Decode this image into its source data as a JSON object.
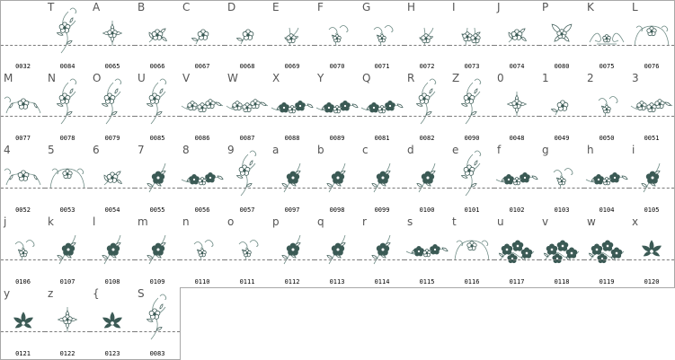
{
  "palette": {
    "ink": "#3b5a55",
    "line": "#6f8c86",
    "border": "#a8a8a8",
    "baseline": "#7a7a7a"
  },
  "rows": [
    [
      {
        "char": "",
        "code": "0032",
        "glyph": "none"
      },
      {
        "char": "T",
        "code": "0084",
        "glyph": "vine-tall-flower"
      },
      {
        "char": "A",
        "code": "0065",
        "glyph": "cross-flower"
      },
      {
        "char": "B",
        "code": "0066",
        "glyph": "leaf-flower-sprig"
      },
      {
        "char": "C",
        "code": "0067",
        "glyph": "small-flower-sprig"
      },
      {
        "char": "D",
        "code": "0068",
        "glyph": "small-flower-sprig"
      },
      {
        "char": "E",
        "code": "0069",
        "glyph": "bud-sprig"
      },
      {
        "char": "F",
        "code": "0070",
        "glyph": "curl-sprig"
      },
      {
        "char": "G",
        "code": "0071",
        "glyph": "curl-sprig"
      },
      {
        "char": "H",
        "code": "0072",
        "glyph": "bud-sprig"
      },
      {
        "char": "I",
        "code": "0073",
        "glyph": "double-flower"
      },
      {
        "char": "J",
        "code": "0074",
        "glyph": "leaf-flower-sprig"
      },
      {
        "char": "P",
        "code": "0080",
        "glyph": "butterfly-flower"
      },
      {
        "char": "K",
        "code": "0075",
        "glyph": "swirl-border"
      },
      {
        "char": "L",
        "code": "0076",
        "glyph": "arch-border"
      }
    ],
    [
      {
        "char": "M",
        "code": "0077",
        "glyph": "wreath"
      },
      {
        "char": "N",
        "code": "0078",
        "glyph": "vine-tall-flower"
      },
      {
        "char": "O",
        "code": "0079",
        "glyph": "vine-tall-flower"
      },
      {
        "char": "U",
        "code": "0085",
        "glyph": "vine-tall-flower"
      },
      {
        "char": "V",
        "code": "0086",
        "glyph": "garland"
      },
      {
        "char": "W",
        "code": "0087",
        "glyph": "garland"
      },
      {
        "char": "X",
        "code": "0088",
        "glyph": "garland-dark"
      },
      {
        "char": "Y",
        "code": "0089",
        "glyph": "garland-dark"
      },
      {
        "char": "Q",
        "code": "0081",
        "glyph": "garland-dark"
      },
      {
        "char": "R",
        "code": "0082",
        "glyph": "vine-tall-flower"
      },
      {
        "char": "Z",
        "code": "0090",
        "glyph": "vine-tall-flower"
      },
      {
        "char": "0",
        "code": "0048",
        "glyph": "cross-flower"
      },
      {
        "char": "1",
        "code": "0049",
        "glyph": "small-flower-sprig"
      },
      {
        "char": "2",
        "code": "0050",
        "glyph": "curl-sprig"
      },
      {
        "char": "3",
        "code": "0051",
        "glyph": "garland"
      }
    ],
    [
      {
        "char": "4",
        "code": "0052",
        "glyph": "wreath"
      },
      {
        "char": "5",
        "code": "0053",
        "glyph": "arch-border"
      },
      {
        "char": "6",
        "code": "0054",
        "glyph": "leaf-flower-sprig"
      },
      {
        "char": "7",
        "code": "0055",
        "glyph": "dark-flower-sprig"
      },
      {
        "char": "8",
        "code": "0056",
        "glyph": "garland-dark"
      },
      {
        "char": "9",
        "code": "0057",
        "glyph": "vine-tall-flower"
      },
      {
        "char": "a",
        "code": "0097",
        "glyph": "dark-flower-sprig"
      },
      {
        "char": "b",
        "code": "0098",
        "glyph": "dark-flower-sprig"
      },
      {
        "char": "c",
        "code": "0099",
        "glyph": "dark-flower-sprig"
      },
      {
        "char": "d",
        "code": "0100",
        "glyph": "dark-flower-sprig"
      },
      {
        "char": "e",
        "code": "0101",
        "glyph": "vine-tall-flower"
      },
      {
        "char": "f",
        "code": "0102",
        "glyph": "garland-dark"
      },
      {
        "char": "g",
        "code": "0103",
        "glyph": "curl-sprig"
      },
      {
        "char": "h",
        "code": "0104",
        "glyph": "garland-dark"
      },
      {
        "char": "i",
        "code": "0105",
        "glyph": "dark-flower-sprig"
      }
    ],
    [
      {
        "char": "j",
        "code": "0106",
        "glyph": "curl-sprig"
      },
      {
        "char": "k",
        "code": "0107",
        "glyph": "dark-flower-sprig"
      },
      {
        "char": "l",
        "code": "0108",
        "glyph": "dark-flower-sprig"
      },
      {
        "char": "m",
        "code": "0109",
        "glyph": "dark-flower-sprig"
      },
      {
        "char": "n",
        "code": "0110",
        "glyph": "curl-sprig"
      },
      {
        "char": "o",
        "code": "0111",
        "glyph": "curl-sprig"
      },
      {
        "char": "p",
        "code": "0112",
        "glyph": "dark-flower-sprig"
      },
      {
        "char": "q",
        "code": "0113",
        "glyph": "dark-flower-sprig"
      },
      {
        "char": "r",
        "code": "0114",
        "glyph": "dark-flower-sprig"
      },
      {
        "char": "s",
        "code": "0115",
        "glyph": "garland-dark"
      },
      {
        "char": "t",
        "code": "0116",
        "glyph": "arch-border"
      },
      {
        "char": "u",
        "code": "0117",
        "glyph": "flower-cluster"
      },
      {
        "char": "v",
        "code": "0118",
        "glyph": "flower-cluster"
      },
      {
        "char": "w",
        "code": "0119",
        "glyph": "flower-cluster"
      },
      {
        "char": "x",
        "code": "0120",
        "glyph": "star-leaves"
      }
    ],
    [
      {
        "char": "y",
        "code": "0121",
        "glyph": "star-leaves"
      },
      {
        "char": "z",
        "code": "0122",
        "glyph": "cross-flower"
      },
      {
        "char": "{",
        "code": "0123",
        "glyph": "star-leaves"
      },
      {
        "char": "S",
        "code": "0083",
        "glyph": "vine-tall-flower"
      }
    ]
  ]
}
